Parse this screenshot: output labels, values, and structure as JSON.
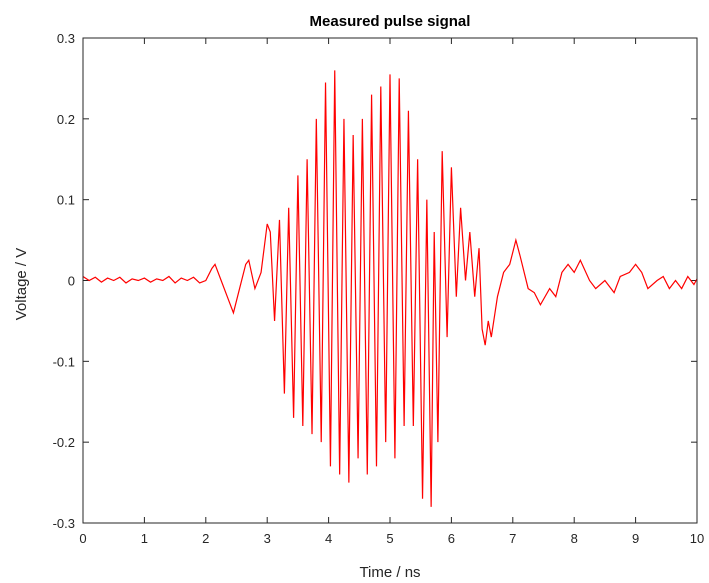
{
  "chart_data": {
    "type": "line",
    "title": "Measured pulse signal",
    "xlabel": "Time / ns",
    "ylabel": "Voltage / V",
    "xlim": [
      0,
      10
    ],
    "ylim": [
      -0.3,
      0.3
    ],
    "xticks": [
      0,
      1,
      2,
      3,
      4,
      5,
      6,
      7,
      8,
      9,
      10
    ],
    "yticks": [
      -0.3,
      -0.2,
      -0.1,
      0,
      0.1,
      0.2,
      0.3
    ],
    "xtick_labels": [
      "0",
      "1",
      "2",
      "3",
      "4",
      "5",
      "6",
      "7",
      "8",
      "9",
      "10"
    ],
    "ytick_labels": [
      "-0.3",
      "-0.2",
      "-0.1",
      "0",
      "0.1",
      "0.2",
      "0.3"
    ],
    "grid": false,
    "series": [
      {
        "color": "#ff0000",
        "x": [
          0,
          0.1,
          0.2,
          0.3,
          0.4,
          0.5,
          0.6,
          0.7,
          0.8,
          0.9,
          1.0,
          1.1,
          1.2,
          1.3,
          1.4,
          1.5,
          1.6,
          1.7,
          1.8,
          1.9,
          2.0,
          2.1,
          2.15,
          2.25,
          2.35,
          2.45,
          2.55,
          2.65,
          2.7,
          2.8,
          2.9,
          2.95,
          3.0,
          3.05,
          3.12,
          3.2,
          3.28,
          3.35,
          3.43,
          3.5,
          3.58,
          3.65,
          3.73,
          3.8,
          3.88,
          3.95,
          4.03,
          4.1,
          4.18,
          4.25,
          4.33,
          4.4,
          4.48,
          4.55,
          4.63,
          4.7,
          4.78,
          4.85,
          4.93,
          5.0,
          5.08,
          5.15,
          5.23,
          5.3,
          5.38,
          5.45,
          5.53,
          5.6,
          5.67,
          5.72,
          5.78,
          5.85,
          5.93,
          6.0,
          6.08,
          6.15,
          6.23,
          6.3,
          6.38,
          6.45,
          6.5,
          6.55,
          6.6,
          6.65,
          6.75,
          6.85,
          6.95,
          7.05,
          7.12,
          7.25,
          7.35,
          7.45,
          7.6,
          7.7,
          7.8,
          7.9,
          8.0,
          8.1,
          8.25,
          8.35,
          8.5,
          8.65,
          8.75,
          8.9,
          9.0,
          9.1,
          9.2,
          9.35,
          9.45,
          9.55,
          9.65,
          9.75,
          9.85,
          9.95,
          10.0
        ],
        "y": [
          0.005,
          0.0,
          0.004,
          -0.002,
          0.003,
          0.0,
          0.004,
          -0.003,
          0.002,
          0.0,
          0.003,
          -0.002,
          0.002,
          0.0,
          0.005,
          -0.003,
          0.003,
          0.0,
          0.004,
          -0.003,
          0.0,
          0.015,
          0.02,
          0.0,
          -0.02,
          -0.04,
          -0.01,
          0.02,
          0.025,
          -0.01,
          0.01,
          0.04,
          0.07,
          0.06,
          -0.05,
          0.075,
          -0.14,
          0.09,
          -0.17,
          0.13,
          -0.18,
          0.15,
          -0.19,
          0.2,
          -0.2,
          0.245,
          -0.23,
          0.26,
          -0.24,
          0.2,
          -0.25,
          0.18,
          -0.22,
          0.2,
          -0.24,
          0.23,
          -0.23,
          0.24,
          -0.2,
          0.255,
          -0.22,
          0.25,
          -0.18,
          0.21,
          -0.18,
          0.15,
          -0.27,
          0.1,
          -0.28,
          0.06,
          -0.2,
          0.16,
          -0.07,
          0.14,
          -0.02,
          0.09,
          0.0,
          0.06,
          -0.02,
          0.04,
          -0.06,
          -0.08,
          -0.05,
          -0.07,
          -0.02,
          0.01,
          0.02,
          0.05,
          0.03,
          -0.01,
          -0.015,
          -0.03,
          -0.01,
          -0.02,
          0.01,
          0.02,
          0.01,
          0.025,
          0.0,
          -0.01,
          0.0,
          -0.015,
          0.005,
          0.01,
          0.02,
          0.01,
          -0.01,
          0.0,
          0.005,
          -0.01,
          0.0,
          -0.01,
          0.005,
          -0.005,
          0.002
        ]
      }
    ]
  }
}
